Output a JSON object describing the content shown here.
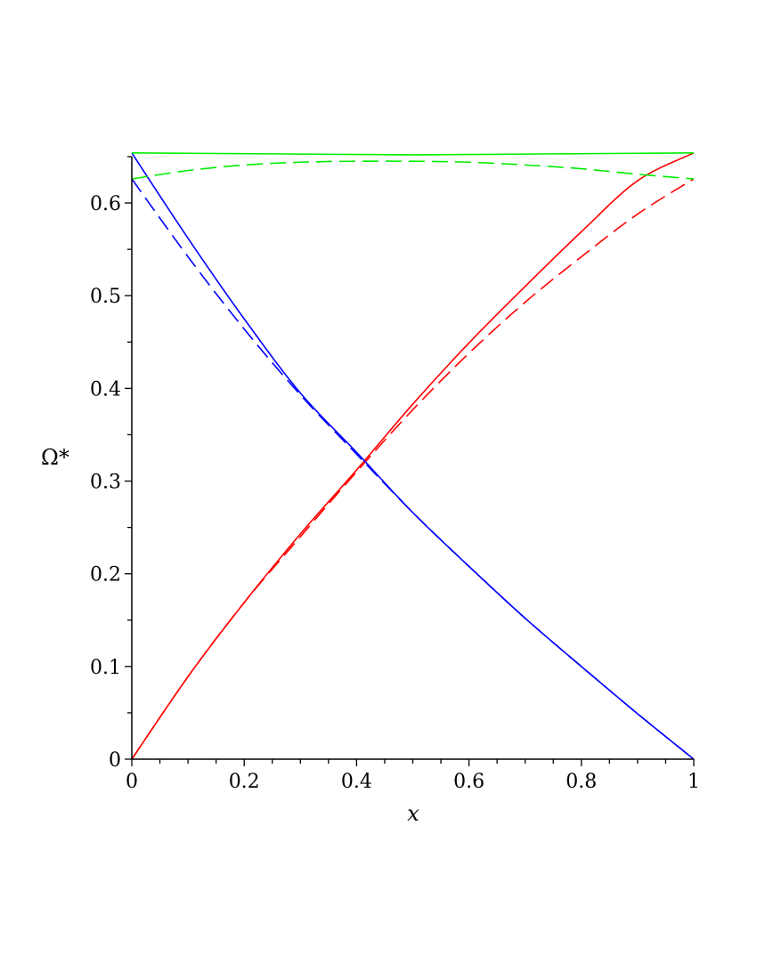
{
  "chart_data": {
    "type": "line",
    "xlabel": "x",
    "ylabel": "Ω*",
    "xlim": [
      0,
      1
    ],
    "ylim": [
      0,
      0.65
    ],
    "x_ticks": [
      "0",
      "0.2",
      "0.4",
      "0.6",
      "0.8",
      "1"
    ],
    "y_ticks": [
      "0",
      "0.1",
      "0.2",
      "0.3",
      "0.4",
      "0.5",
      "0.6"
    ],
    "x_tick_values": [
      0,
      0.2,
      0.4,
      0.6,
      0.8,
      1
    ],
    "y_tick_values": [
      0,
      0.1,
      0.2,
      0.3,
      0.4,
      0.5,
      0.6
    ],
    "grid": false,
    "series": [
      {
        "color": "#ff0000",
        "style": "solid",
        "x": [
          0,
          0.1,
          0.2,
          0.3,
          0.4,
          0.5,
          0.6,
          0.7,
          0.8,
          0.9,
          1.0
        ],
        "y": [
          0,
          0.089,
          0.169,
          0.243,
          0.312,
          0.383,
          0.449,
          0.51,
          0.569,
          0.624,
          0.654
        ]
      },
      {
        "color": "#ff0000",
        "style": "dashed",
        "x": [
          0,
          0.1,
          0.2,
          0.3,
          0.4,
          0.5,
          0.6,
          0.7,
          0.8,
          0.9,
          1.0
        ],
        "y": [
          0,
          0.089,
          0.169,
          0.24,
          0.31,
          0.377,
          0.438,
          0.493,
          0.542,
          0.588,
          0.626
        ]
      },
      {
        "color": "#0000ff",
        "style": "solid",
        "x": [
          0,
          0.1,
          0.2,
          0.3,
          0.4,
          0.5,
          0.6,
          0.7,
          0.8,
          0.9,
          1.0
        ],
        "y": [
          0.654,
          0.562,
          0.475,
          0.395,
          0.331,
          0.266,
          0.208,
          0.152,
          0.1,
          0.049,
          0
        ]
      },
      {
        "color": "#0000ff",
        "style": "dashed",
        "x": [
          0,
          0.1,
          0.2,
          0.3,
          0.4,
          0.5,
          0.6,
          0.7,
          0.8,
          0.9,
          1.0
        ],
        "y": [
          0.626,
          0.542,
          0.464,
          0.393,
          0.329,
          0.266,
          0.208,
          0.152,
          0.1,
          0.049,
          0
        ]
      },
      {
        "color": "#00ee00",
        "style": "solid",
        "x": [
          0,
          0.25,
          0.5,
          0.75,
          1.0
        ],
        "y": [
          0.654,
          0.653,
          0.652,
          0.653,
          0.654
        ]
      },
      {
        "color": "#00ee00",
        "style": "dashed",
        "x": [
          0,
          0.1,
          0.2,
          0.3,
          0.4,
          0.5,
          0.6,
          0.7,
          0.8,
          0.9,
          1.0
        ],
        "y": [
          0.626,
          0.635,
          0.641,
          0.644,
          0.645,
          0.645,
          0.644,
          0.641,
          0.637,
          0.631,
          0.626
        ]
      }
    ]
  }
}
